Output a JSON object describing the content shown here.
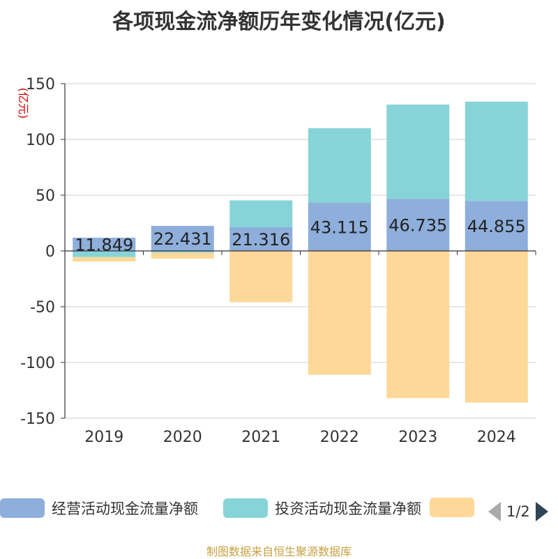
{
  "title": "各项现金流净额历年变化情况(亿元)",
  "source": "制图数据来自恒生聚源数据库",
  "legend_pager": "1/2",
  "colors": {
    "operating": "#8eaedb",
    "investing": "#87d4d8",
    "financing": "#fdd899",
    "label_text": "#222222",
    "unit_text": "#cc0000"
  },
  "chart_data": {
    "type": "bar",
    "stacked": true,
    "title": "各项现金流净额历年变化情况(亿元)",
    "unit_label": "(亿元)",
    "categories": [
      "2019",
      "2020",
      "2021",
      "2022",
      "2023",
      "2024"
    ],
    "ylim": [
      -150,
      150
    ],
    "yticks": [
      -150,
      -100,
      -50,
      0,
      50,
      100,
      150
    ],
    "grid": true,
    "legend_position": "bottom",
    "series": [
      {
        "name": "经营活动现金流量净额",
        "values": [
          11.849,
          22.431,
          21.316,
          43.115,
          46.735,
          44.855
        ],
        "show_labels": true
      },
      {
        "name": "投资活动现金流量净额",
        "values": [
          -5.5,
          -1.5,
          24,
          67,
          84.5,
          89
        ],
        "show_labels": false
      },
      {
        "name": "",
        "values": [
          -4,
          -5.5,
          -46,
          -111,
          -132,
          -136
        ],
        "show_labels": false
      }
    ]
  }
}
